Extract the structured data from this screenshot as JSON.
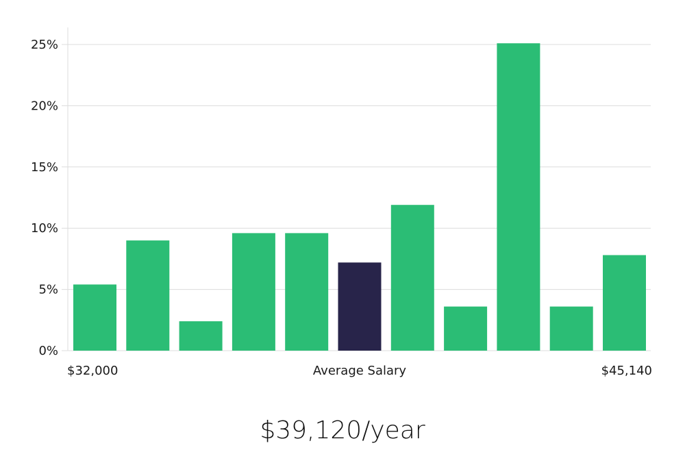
{
  "chart_data": {
    "type": "bar",
    "categories": [
      "",
      "",
      "",
      "",
      "",
      "",
      "",
      "",
      "",
      "",
      ""
    ],
    "values": [
      5.4,
      9.0,
      2.4,
      9.6,
      9.6,
      7.2,
      11.9,
      3.6,
      25.1,
      3.6,
      7.8
    ],
    "highlight_index": 5,
    "ylim": [
      0,
      25
    ],
    "yticks": [
      "0%",
      "5%",
      "10%",
      "15%",
      "20%",
      "25%"
    ],
    "ytick_values": [
      0,
      5,
      10,
      15,
      20,
      25
    ],
    "x_min_label": "$32,000",
    "xlabel": "Average Salary",
    "x_max_label": "$45,140",
    "grid": true,
    "colors": {
      "bar": "#2bbd75",
      "highlight": "#28244a",
      "grid": "#dcdcdc"
    }
  },
  "salary": {
    "value": "$39,120/year"
  }
}
